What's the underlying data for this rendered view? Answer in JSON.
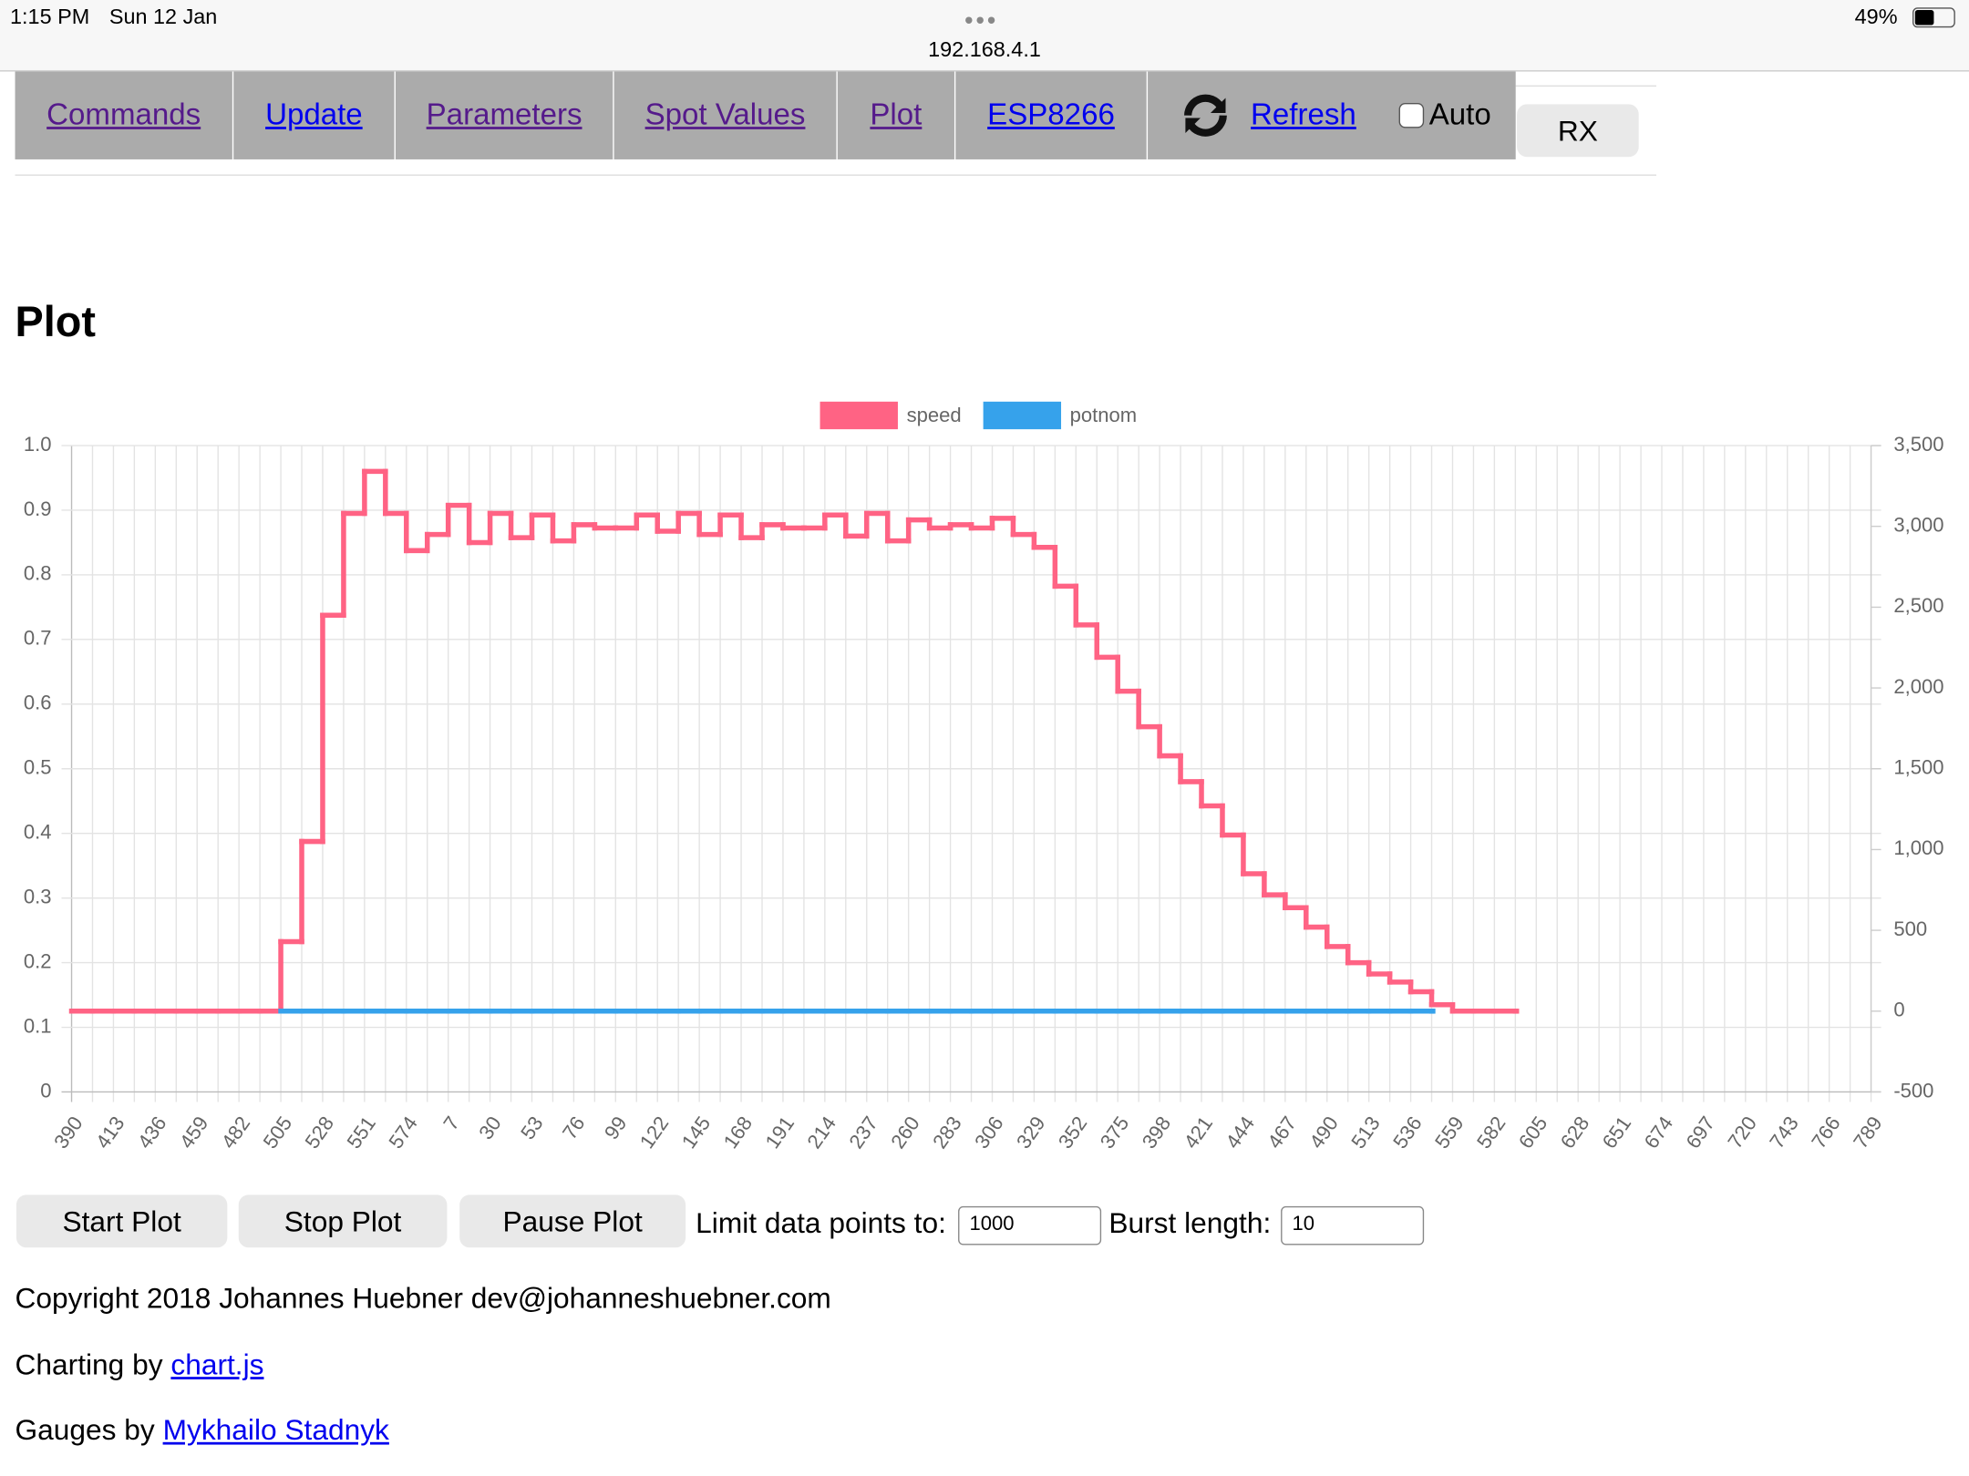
{
  "status": {
    "time": "1:15 PM",
    "date": "Sun 12 Jan",
    "url": "192.168.4.1",
    "battery": "49%"
  },
  "nav": {
    "items": [
      "Commands",
      "Update",
      "Parameters",
      "Spot Values",
      "Plot",
      "ESP8266"
    ],
    "refresh": "Refresh",
    "auto": "Auto",
    "rx": "RX"
  },
  "heading": "Plot",
  "chart_data": {
    "type": "line",
    "stepped": true,
    "categories": [
      "390",
      null,
      "413",
      null,
      "436",
      null,
      "459",
      null,
      "482",
      null,
      "505",
      null,
      "528",
      null,
      "551",
      null,
      "574",
      null,
      "7",
      null,
      "30",
      null,
      "53",
      null,
      "76",
      null,
      "99",
      null,
      "122",
      null,
      "145",
      null,
      "168",
      null,
      "191",
      null,
      "214",
      null,
      "237",
      null,
      "260",
      null,
      "283",
      null,
      "306",
      null,
      "329",
      null,
      "352",
      null,
      "375",
      null,
      "398",
      null,
      "421",
      null,
      "444",
      null,
      "467",
      null,
      "490",
      null,
      "513",
      null,
      "536",
      null,
      "559",
      null,
      "582",
      null,
      "605",
      null,
      "628",
      null,
      "651",
      null,
      "674",
      null,
      "697",
      null,
      "720",
      null,
      "743",
      null,
      "766",
      null,
      "789"
    ],
    "series": [
      {
        "name": "speed",
        "color": "#ff6384",
        "axis": "y2",
        "values": [
          0,
          0,
          0,
          0,
          0,
          0,
          0,
          0,
          0,
          0,
          430,
          1050,
          2450,
          3080,
          3340,
          3080,
          2850,
          2950,
          3130,
          2900,
          3080,
          2930,
          3070,
          2910,
          3010,
          2990,
          2990,
          3070,
          2970,
          3080,
          2950,
          3070,
          2930,
          3010,
          2990,
          2990,
          3070,
          2940,
          3080,
          2910,
          3040,
          2990,
          3010,
          2990,
          3050,
          2950,
          2870,
          2630,
          2390,
          2190,
          1980,
          1760,
          1580,
          1420,
          1270,
          1090,
          850,
          720,
          640,
          520,
          400,
          300,
          230,
          180,
          120,
          40,
          0,
          0,
          0,
          0,
          null,
          null,
          null,
          null,
          null,
          null,
          null,
          null,
          null,
          null,
          null,
          null,
          null,
          null,
          null,
          null,
          null
        ]
      },
      {
        "name": "potnom",
        "color": "#36a2eb",
        "axis": "y2",
        "values": [
          null,
          null,
          null,
          null,
          null,
          null,
          null,
          null,
          null,
          null,
          0,
          0,
          0,
          0,
          0,
          0,
          0,
          0,
          0,
          0,
          0,
          0,
          0,
          0,
          0,
          0,
          0,
          0,
          0,
          0,
          0,
          0,
          0,
          0,
          0,
          0,
          0,
          0,
          0,
          0,
          0,
          0,
          0,
          0,
          0,
          0,
          0,
          0,
          0,
          0,
          0,
          0,
          0,
          0,
          0,
          0,
          0,
          0,
          0,
          0,
          0,
          0,
          0,
          0,
          0,
          0,
          null,
          null,
          null,
          null,
          null,
          null,
          null,
          null,
          null,
          null,
          null,
          null,
          null,
          null,
          null,
          null,
          null,
          null,
          null,
          null,
          null
        ]
      }
    ],
    "ylim": [
      0,
      1
    ],
    "yticks": [
      0,
      0.1,
      0.2,
      0.3,
      0.4,
      0.5,
      0.6,
      0.7,
      0.8,
      0.9,
      {
        "value": 1,
        "label": "1.0"
      }
    ],
    "y2lim": [
      -500,
      3500
    ],
    "y2ticks": [
      -500,
      0,
      500,
      {
        "value": 1000,
        "label": "1,000"
      },
      {
        "value": 1500,
        "label": "1,500"
      },
      {
        "value": 2000,
        "label": "2,000"
      },
      {
        "value": 2500,
        "label": "2,500"
      },
      {
        "value": 3000,
        "label": "3,000"
      },
      {
        "value": 3500,
        "label": "3,500"
      }
    ],
    "grid": true,
    "legend": "top"
  },
  "controls": {
    "buttons": [
      "Start Plot",
      "Stop Plot",
      "Pause Plot"
    ],
    "limit_label": "Limit data points to:",
    "limit_value": "1000",
    "burst_label": "Burst length:",
    "burst_value": "10"
  },
  "footer": {
    "copyright": "Copyright 2018 Johannes Huebner dev@johanneshuebner.com",
    "charting_prefix": "Charting by",
    "charting_link": "chart.js",
    "gauges_prefix": "Gauges by",
    "gauges_link": "Mykhailo Stadnyk"
  }
}
